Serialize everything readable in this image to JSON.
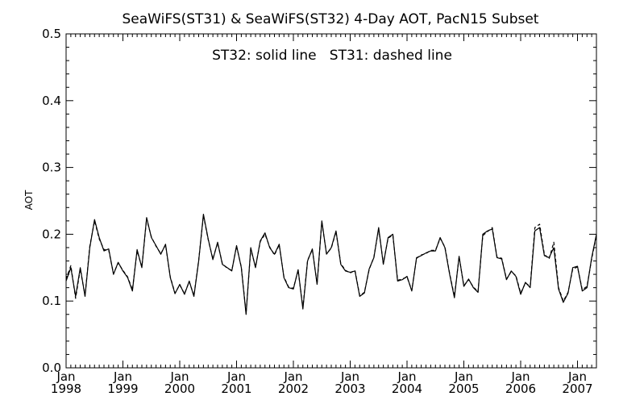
{
  "chart_data": {
    "type": "line",
    "title": "SeaWiFS(ST31) & SeaWiFS(ST32) 4-Day AOT, PacN15 Subset",
    "annotation": "ST32: solid line   ST31: dashed line",
    "xlabel": "",
    "ylabel": "AOT",
    "ylim": [
      0.0,
      0.5
    ],
    "yticks": [
      "0.0",
      "0.1",
      "0.2",
      "0.3",
      "0.4",
      "0.5"
    ],
    "xlim": [
      "1998-01",
      "2007-05"
    ],
    "xticks": [
      {
        "month": "Jan",
        "year": "1998"
      },
      {
        "month": "Jan",
        "year": "1999"
      },
      {
        "month": "Jan",
        "year": "2000"
      },
      {
        "month": "Jan",
        "year": "2001"
      },
      {
        "month": "Jan",
        "year": "2002"
      },
      {
        "month": "Jan",
        "year": "2003"
      },
      {
        "month": "Jan",
        "year": "2004"
      },
      {
        "month": "Jan",
        "year": "2005"
      },
      {
        "month": "Jan",
        "year": "2006"
      },
      {
        "month": "Jan",
        "year": "2007"
      }
    ],
    "grid": false,
    "x": [
      "1998-01",
      "1998-02",
      "1998-03",
      "1998-04",
      "1998-05",
      "1998-06",
      "1998-07",
      "1998-08",
      "1998-09",
      "1998-10",
      "1998-11",
      "1998-12",
      "1999-01",
      "1999-02",
      "1999-03",
      "1999-04",
      "1999-05",
      "1999-06",
      "1999-07",
      "1999-08",
      "1999-09",
      "1999-10",
      "1999-11",
      "1999-12",
      "2000-01",
      "2000-02",
      "2000-03",
      "2000-04",
      "2000-05",
      "2000-06",
      "2000-07",
      "2000-08",
      "2000-09",
      "2000-10",
      "2000-11",
      "2000-12",
      "2001-01",
      "2001-02",
      "2001-03",
      "2001-04",
      "2001-05",
      "2001-06",
      "2001-07",
      "2001-08",
      "2001-09",
      "2001-10",
      "2001-11",
      "2001-12",
      "2002-01",
      "2002-02",
      "2002-03",
      "2002-04",
      "2002-05",
      "2002-06",
      "2002-07",
      "2002-08",
      "2002-09",
      "2002-10",
      "2002-11",
      "2002-12",
      "2003-01",
      "2003-02",
      "2003-03",
      "2003-04",
      "2003-05",
      "2003-06",
      "2003-07",
      "2003-08",
      "2003-09",
      "2003-10",
      "2003-11",
      "2003-12",
      "2004-01",
      "2004-02",
      "2004-03",
      "2004-04",
      "2004-05",
      "2004-06",
      "2004-07",
      "2004-08",
      "2004-09",
      "2004-10",
      "2004-11",
      "2004-12",
      "2005-01",
      "2005-02",
      "2005-03",
      "2005-04",
      "2005-05",
      "2005-06",
      "2005-07",
      "2005-08",
      "2005-09",
      "2005-10",
      "2005-11",
      "2005-12",
      "2006-01",
      "2006-02",
      "2006-03",
      "2006-04",
      "2006-05",
      "2006-06",
      "2006-07",
      "2006-08",
      "2006-09",
      "2006-10",
      "2006-11",
      "2006-12",
      "2007-01",
      "2007-02",
      "2007-03",
      "2007-04",
      "2007-05"
    ],
    "series": [
      {
        "name": "ST32",
        "style": "solid",
        "values": [
          0.13,
          0.15,
          0.107,
          0.15,
          0.107,
          0.18,
          0.222,
          0.195,
          0.175,
          0.178,
          0.14,
          0.158,
          0.145,
          0.135,
          0.115,
          0.177,
          0.15,
          0.225,
          0.195,
          0.183,
          0.17,
          0.185,
          0.135,
          0.111,
          0.125,
          0.11,
          0.13,
          0.107,
          0.16,
          0.23,
          0.193,
          0.162,
          0.188,
          0.155,
          0.15,
          0.145,
          0.183,
          0.15,
          0.08,
          0.18,
          0.15,
          0.19,
          0.202,
          0.18,
          0.17,
          0.185,
          0.135,
          0.12,
          0.118,
          0.147,
          0.088,
          0.16,
          0.178,
          0.125,
          0.22,
          0.17,
          0.18,
          0.205,
          0.155,
          0.145,
          0.143,
          0.145,
          0.107,
          0.112,
          0.148,
          0.165,
          0.21,
          0.155,
          0.195,
          0.2,
          0.13,
          0.132,
          0.137,
          0.115,
          0.165,
          0.168,
          0.172,
          0.175,
          0.175,
          0.195,
          0.18,
          0.14,
          0.105,
          0.167,
          0.122,
          0.133,
          0.12,
          0.113,
          0.2,
          0.205,
          0.208,
          0.165,
          0.163,
          0.132,
          0.145,
          0.137,
          0.11,
          0.128,
          0.12,
          0.205,
          0.21,
          0.168,
          0.165,
          0.18,
          0.118,
          0.098,
          0.112,
          0.15,
          0.152,
          0.115,
          0.12,
          0.165,
          0.2
        ]
      },
      {
        "name": "ST31",
        "style": "dashed",
        "values": [
          0.133,
          0.153,
          0.104,
          0.148,
          0.108,
          0.182,
          0.22,
          0.193,
          0.177,
          0.176,
          0.141,
          0.157,
          0.146,
          0.136,
          0.117,
          0.175,
          0.151,
          0.223,
          0.196,
          0.182,
          0.171,
          0.184,
          0.136,
          0.112,
          0.124,
          0.111,
          0.129,
          0.108,
          0.161,
          0.228,
          0.192,
          0.163,
          0.187,
          0.156,
          0.149,
          0.146,
          0.182,
          0.151,
          0.082,
          0.178,
          0.151,
          0.189,
          0.2,
          0.181,
          0.169,
          0.184,
          0.136,
          0.121,
          0.119,
          0.146,
          0.09,
          0.161,
          0.177,
          0.126,
          0.218,
          0.171,
          0.179,
          0.204,
          0.156,
          0.146,
          0.142,
          0.146,
          0.108,
          0.113,
          0.147,
          0.166,
          0.208,
          0.156,
          0.194,
          0.199,
          0.131,
          0.133,
          0.136,
          0.116,
          0.164,
          0.169,
          0.171,
          0.176,
          0.176,
          0.194,
          0.181,
          0.141,
          0.107,
          0.166,
          0.123,
          0.132,
          0.121,
          0.114,
          0.198,
          0.204,
          0.21,
          0.166,
          0.164,
          0.133,
          0.144,
          0.138,
          0.112,
          0.127,
          0.122,
          0.21,
          0.215,
          0.17,
          0.163,
          0.188,
          0.12,
          0.1,
          0.113,
          0.148,
          0.151,
          0.117,
          0.122,
          0.163,
          0.198
        ]
      }
    ]
  }
}
